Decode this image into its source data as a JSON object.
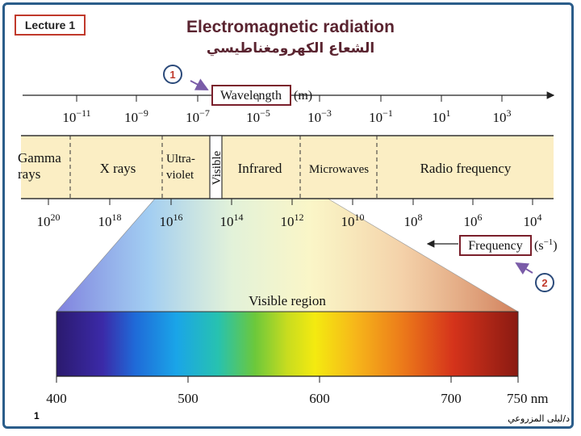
{
  "header": {
    "lecture_label": "Lecture 1",
    "title": "Electromagnetic radiation",
    "title_arabic": "الشعاع الكهرومغناطيسي"
  },
  "markers": {
    "one": "1",
    "two": "2"
  },
  "wavelength_axis": {
    "label": "Wavelength",
    "unit": "(m)",
    "ticks": [
      {
        "base": "10",
        "exp": "−11"
      },
      {
        "base": "10",
        "exp": "−9"
      },
      {
        "base": "10",
        "exp": "−7"
      },
      {
        "base": "10",
        "exp": "−5"
      },
      {
        "base": "10",
        "exp": "−3"
      },
      {
        "base": "10",
        "exp": "−1"
      },
      {
        "base": "10",
        "exp": "1"
      },
      {
        "base": "10",
        "exp": "3"
      }
    ]
  },
  "regions": {
    "gamma_line1": "Gamma",
    "gamma_line2": "rays",
    "xrays": "X rays",
    "uv_line1": "Ultra-",
    "uv_line2": "violet",
    "visible": "Visible",
    "infrared": "Infrared",
    "microwaves": "Microwaves",
    "radio": "Radio frequency"
  },
  "frequency_axis": {
    "label": "Frequency",
    "unit_base": "(s",
    "unit_exp": "−1",
    "unit_close": ")",
    "ticks": [
      {
        "base": "10",
        "exp": "20"
      },
      {
        "base": "10",
        "exp": "18"
      },
      {
        "base": "10",
        "exp": "16"
      },
      {
        "base": "10",
        "exp": "14"
      },
      {
        "base": "10",
        "exp": "12"
      },
      {
        "base": "10",
        "exp": "10"
      },
      {
        "base": "10",
        "exp": "8"
      },
      {
        "base": "10",
        "exp": "6"
      },
      {
        "base": "10",
        "exp": "4"
      }
    ]
  },
  "visible_region": {
    "label": "Visible region",
    "ticks": [
      "400",
      "500",
      "600",
      "700",
      "750 nm"
    ]
  },
  "footer": {
    "page_number": "1",
    "author": "د/ليلى المزروعي"
  },
  "colors": {
    "band": "#fbeec4",
    "frame": "#2b5d8a",
    "highlight_box": "#7a1f2b",
    "title": "#5a2430"
  }
}
